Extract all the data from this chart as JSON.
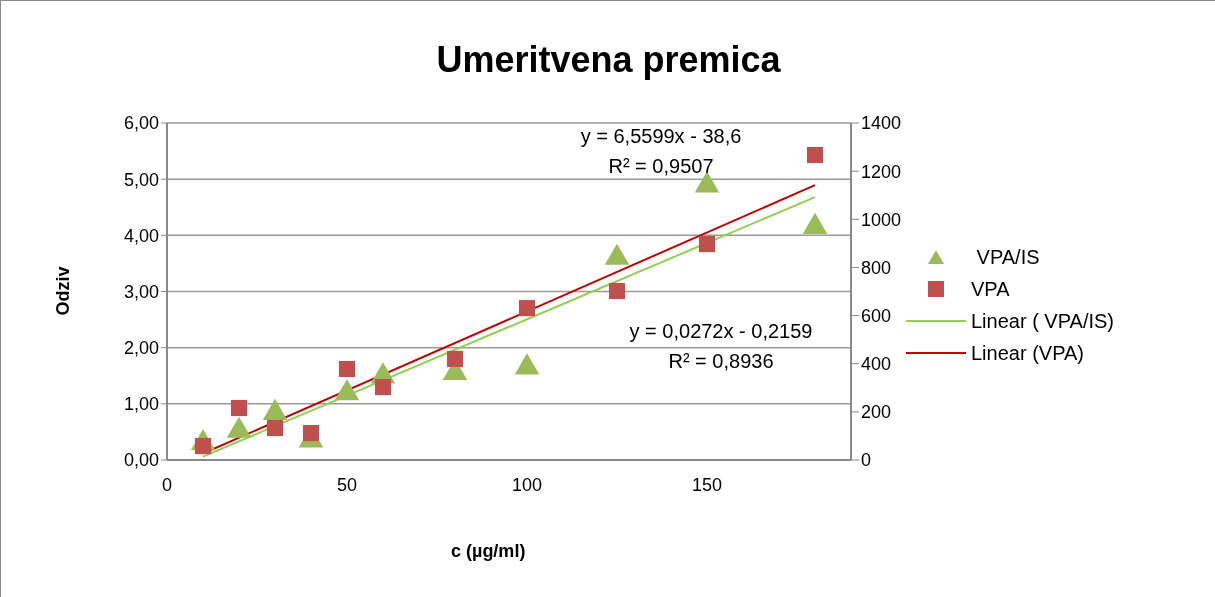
{
  "chart_data": {
    "type": "scatter",
    "title": "Umeritvena premica",
    "xlabel": "c (µg/ml)",
    "ylabel": "Odziv",
    "xlim": [
      0,
      190
    ],
    "xticks": [
      0,
      50,
      100,
      150
    ],
    "ylim": [
      0,
      6
    ],
    "yticks": [
      {
        "value": 0,
        "label": "0,00"
      },
      {
        "value": 1,
        "label": "1,00"
      },
      {
        "value": 2,
        "label": "2,00"
      },
      {
        "value": 3,
        "label": "3,00"
      },
      {
        "value": 4,
        "label": "4,00"
      },
      {
        "value": 5,
        "label": "5,00"
      },
      {
        "value": 6,
        "label": "6,00"
      }
    ],
    "y2lim": [
      0,
      1400
    ],
    "y2ticks": [
      0,
      200,
      400,
      600,
      800,
      1000,
      1200,
      1400
    ],
    "grid": "y",
    "legend": "right",
    "series": [
      {
        "name": " VPA/IS",
        "marker": "triangle",
        "color": "#9bbb59",
        "x": [
          10,
          20,
          30,
          40,
          50,
          60,
          80,
          100,
          125,
          150,
          180
        ],
        "values": [
          0.3,
          0.52,
          0.84,
          0.35,
          1.19,
          1.49,
          1.55,
          1.65,
          3.6,
          4.89,
          4.15
        ]
      },
      {
        "name": "VPA",
        "marker": "square",
        "axis": "y2",
        "color": "#c0504d",
        "x": [
          10,
          20,
          30,
          40,
          50,
          60,
          80,
          100,
          125,
          150,
          180
        ],
        "values": [
          58,
          216,
          133,
          112,
          378,
          303,
          420,
          631,
          702,
          897,
          1267
        ]
      },
      {
        "name": "Linear ( VPA/IS)",
        "type": "line",
        "marker": "none",
        "color": "#92d050",
        "x": [
          10,
          180
        ],
        "values": [
          0.06,
          4.68
        ]
      },
      {
        "name": "Linear (VPA)",
        "type": "line",
        "marker": "none",
        "axis": "y2",
        "color": "#c00000",
        "x": [
          10,
          180
        ],
        "values": [
          27,
          1142
        ]
      }
    ],
    "annotations": [
      "y = 6,5599x - 38,6",
      "R² = 0,9507",
      "y = 0,0272x - 0,2159",
      "R² = 0,8936"
    ]
  }
}
